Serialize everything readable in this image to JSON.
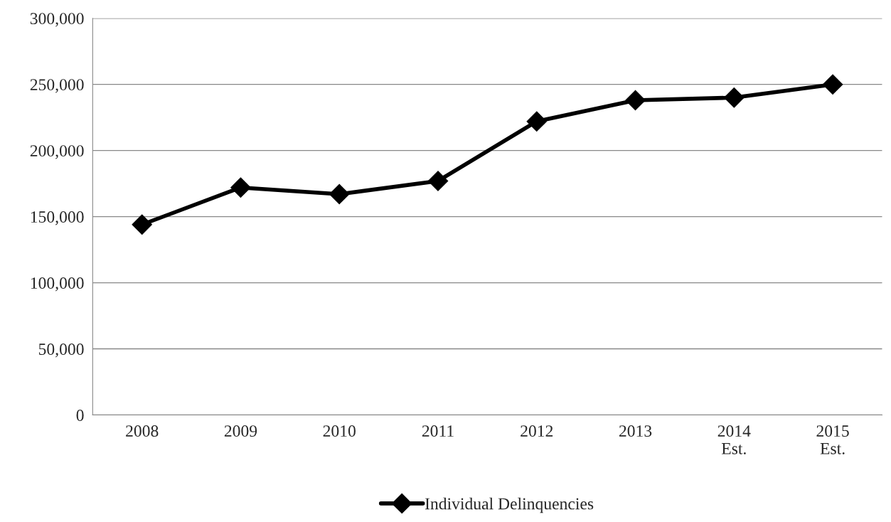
{
  "chart_data": {
    "type": "line",
    "categories": [
      "2008",
      "2009",
      "2010",
      "2011",
      "2012",
      "2013",
      "2014\nEst.",
      "2015\nEst."
    ],
    "series": [
      {
        "name": "Individual Delinquencies",
        "color": "#000000",
        "values": [
          144000,
          172000,
          167000,
          177000,
          222000,
          238000,
          240000,
          250000
        ]
      }
    ],
    "ylim": [
      0,
      300000
    ],
    "yticks": [
      {
        "value": 0,
        "label": "0"
      },
      {
        "value": 50000,
        "label": "50,000"
      },
      {
        "value": 100000,
        "label": "100,000"
      },
      {
        "value": 150000,
        "label": "150,000"
      },
      {
        "value": 200000,
        "label": "200,000"
      },
      {
        "value": 250000,
        "label": "250,000"
      },
      {
        "value": 300000,
        "label": "300,000"
      }
    ],
    "grid": "y",
    "legend": "bottom",
    "marker": "diamond",
    "line_style": "solid"
  }
}
